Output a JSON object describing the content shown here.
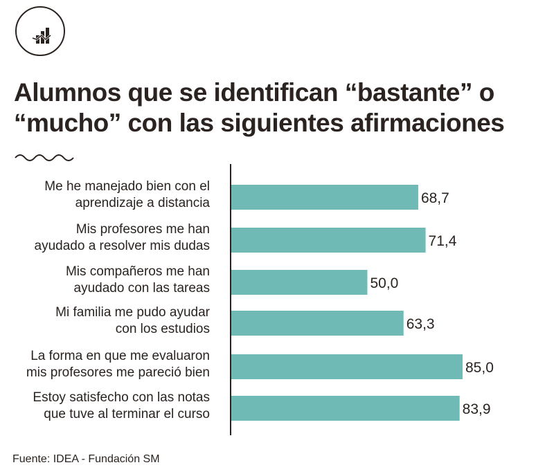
{
  "logo": {
    "icon": "bar-line-chart-icon"
  },
  "chart_data": {
    "type": "bar",
    "orientation": "horizontal",
    "title": "Alumnos que se identifican “bastante” o “mucho” con las siguientes afirmaciones",
    "title_lines": [
      "Alumnos que se identifican “bastante” o",
      "“mucho” con las siguientes afirmaciones"
    ],
    "categories": [
      [
        "Me he manejado bien con el",
        "aprendizaje a distancia"
      ],
      [
        "Mis profesores me han",
        "ayudado a resolver mis dudas"
      ],
      [
        "Mis compañeros me han",
        "ayudado con las tareas"
      ],
      [
        "Mi familia me pudo ayudar",
        "con los estudios"
      ],
      [
        "La forma en que me evaluaron",
        "mis profesores me pareció bien"
      ],
      [
        "Estoy satisfecho con las notas",
        "que tuve al terminar el curso"
      ]
    ],
    "values": [
      68.7,
      71.4,
      50.0,
      63.3,
      85.0,
      83.9
    ],
    "value_labels": [
      "68,7",
      "71,4",
      "50,0",
      "63,3",
      "85,0",
      "83,9"
    ],
    "xlim": [
      0,
      85
    ],
    "bar_color": "#6fbab5",
    "grid": false,
    "source": "Fuente: IDEA - Fundación SM"
  }
}
